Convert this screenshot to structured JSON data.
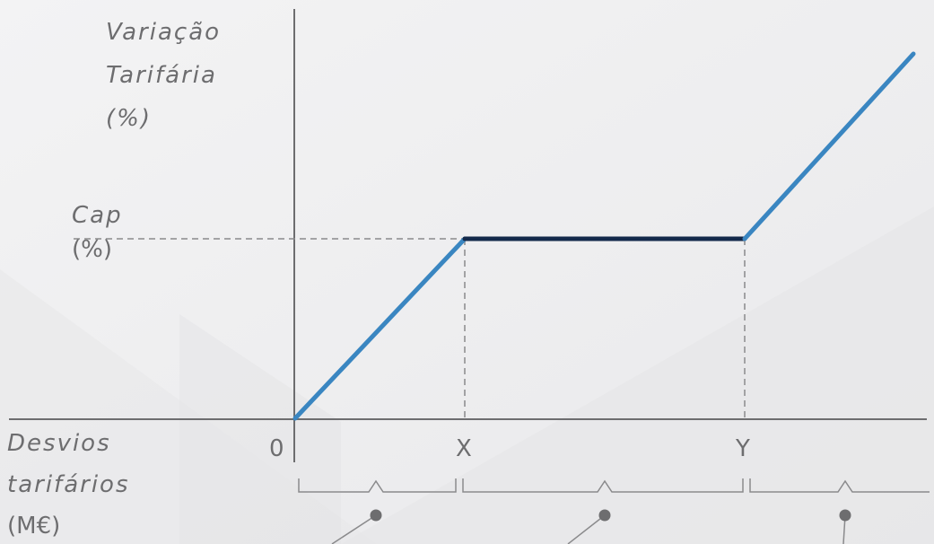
{
  "y_axis_label": [
    "Variação",
    "Tarifária",
    "(%)"
  ],
  "cap_label": [
    "Cap",
    "(%)"
  ],
  "x_axis_label": [
    "Desvios",
    "tarifários",
    "(M€)"
  ],
  "x_ticks": [
    "0",
    "X",
    "Y"
  ],
  "colors": {
    "background": "#f1f1f2",
    "axis": "#6d6d6f",
    "line_blue": "#3a86c1",
    "line_navy": "#13294b",
    "dashed": "#8a8a8c",
    "bracket": "#8a8a8c"
  }
}
